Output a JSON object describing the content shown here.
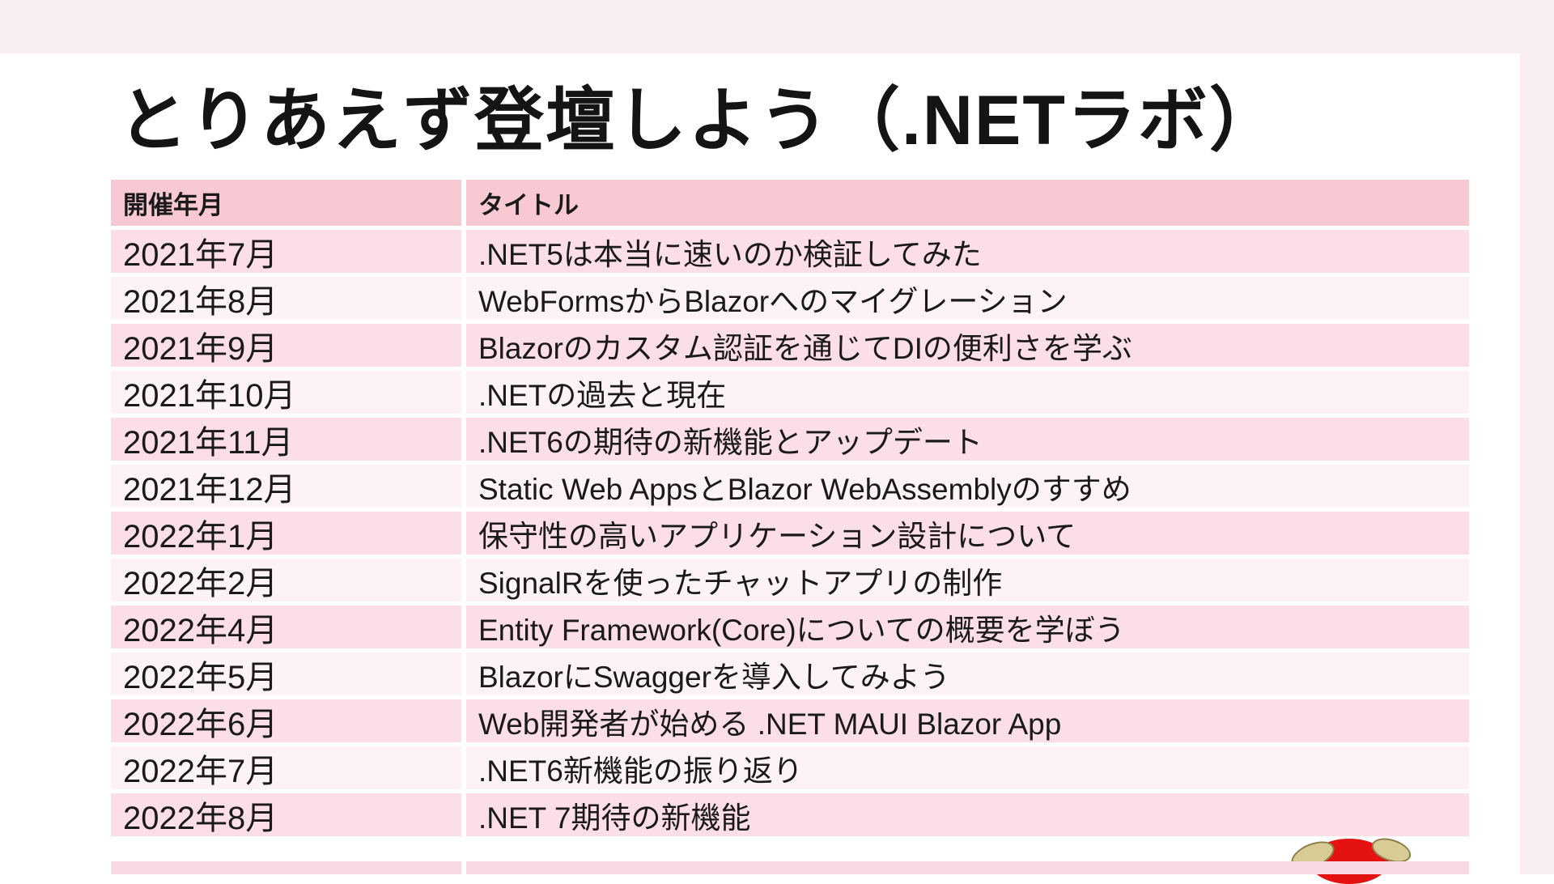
{
  "slide": {
    "title": "とりあえず登壇しよう（.NETラボ）"
  },
  "table": {
    "columns": [
      "開催年月",
      "タイトル"
    ],
    "rows": [
      {
        "date": "2021年7月",
        "title": ".NET5は本当に速いのか検証してみた"
      },
      {
        "date": "2021年8月",
        "title": "WebFormsからBlazorへのマイグレーション"
      },
      {
        "date": "2021年9月",
        "title": "Blazorのカスタム認証を通じてDIの便利さを学ぶ"
      },
      {
        "date": "2021年10月",
        "title": ".NETの過去と現在"
      },
      {
        "date": "2021年11月",
        "title": ".NET6の期待の新機能とアップデート"
      },
      {
        "date": "2021年12月",
        "title": "Static Web AppsとBlazor WebAssemblyのすすめ"
      },
      {
        "date": "2022年1月",
        "title": "保守性の高いアプリケーション設計について"
      },
      {
        "date": "2022年2月",
        "title": "SignalRを使ったチャットアプリの制作"
      },
      {
        "date": "2022年4月",
        "title": "Entity Framework(Core)についての概要を学ぼう"
      },
      {
        "date": "2022年5月",
        "title": "BlazorにSwaggerを導入してみよう"
      },
      {
        "date": "2022年6月",
        "title": "Web開発者が始める .NET MAUI Blazor App"
      },
      {
        "date": "2022年7月",
        "title": ".NET6新機能の振り返り"
      },
      {
        "date": "2022年8月",
        "title": ".NET 7期待の新機能"
      }
    ]
  },
  "colors": {
    "header_bg": "#f8c9d3",
    "row_pink": "#fbdee6",
    "row_light": "#fdf3f5",
    "page_margin_pink": "#f7edf2",
    "partial_row_pink": "#f9d9e2",
    "mascot_red": "#e51212",
    "mascot_hand_beige": "#d9cb95",
    "text": "#1a1a1a"
  },
  "mascot": {
    "name": "character peeking from slide bottom edge"
  }
}
